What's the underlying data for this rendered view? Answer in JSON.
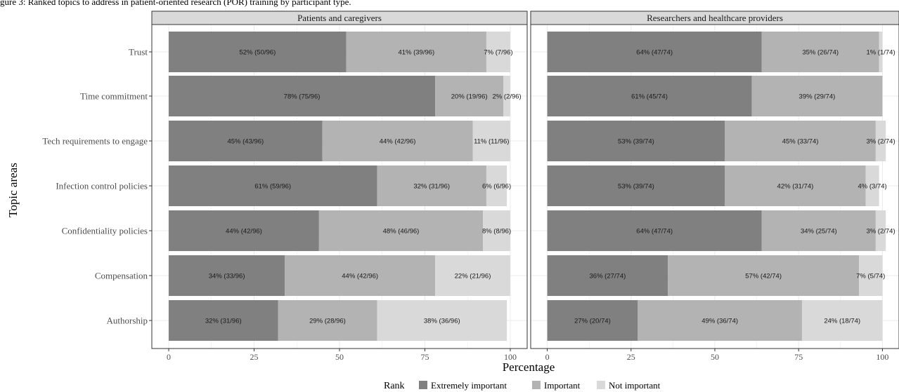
{
  "caption_fragment": "gure 3: Ranked topics to address in patient-oriented research (POR) training by participant type.",
  "colors": {
    "extremely_important": "#808080",
    "important": "#b3b3b3",
    "not_important": "#d9d9d9",
    "panel_bg": "#ffffff",
    "strip_bg": "#d9d9d9",
    "grid": "#ebebeb"
  },
  "chart_data": {
    "type": "bar",
    "orientation": "horizontal",
    "stacked": true,
    "xlabel": "Percentage",
    "ylabel": "Topic areas",
    "xlim": [
      0,
      100
    ],
    "x_ticks": [
      "0",
      "25",
      "50",
      "75",
      "100"
    ],
    "grid": true,
    "legend": {
      "title": "Rank",
      "position": "bottom",
      "entries": [
        "Extremely important",
        "Important",
        "Not important"
      ]
    },
    "categories": [
      "Trust",
      "Time commitment",
      "Tech requirements to engage",
      "Infection control policies",
      "Confidentiality policies",
      "Compensation",
      "Authorship"
    ],
    "panels": [
      {
        "title": "Patients and caregivers",
        "series": [
          {
            "name": "Extremely important",
            "values": [
              52,
              78,
              45,
              61,
              44,
              34,
              32
            ],
            "labels": [
              "52% (50/96)",
              "78% (75/96)",
              "45% (43/96)",
              "61% (59/96)",
              "44% (42/96)",
              "34% (33/96)",
              "32% (31/96)"
            ]
          },
          {
            "name": "Important",
            "values": [
              41,
              20,
              44,
              32,
              48,
              44,
              29
            ],
            "labels": [
              "41% (39/96)",
              "20% (19/96)",
              "44% (42/96)",
              "32% (31/96)",
              "48% (46/96)",
              "44% (42/96)",
              "29% (28/96)"
            ]
          },
          {
            "name": "Not important",
            "values": [
              7,
              2,
              11,
              6,
              8,
              22,
              38
            ],
            "labels": [
              "7% (7/96)",
              "2% (2/96)",
              "11% (11/96)",
              "6% (6/96)",
              "8% (8/96)",
              "22% (21/96)",
              "38% (36/96)"
            ]
          }
        ]
      },
      {
        "title": "Researchers and healthcare providers",
        "series": [
          {
            "name": "Extremely important",
            "values": [
              64,
              61,
              53,
              53,
              64,
              36,
              27
            ],
            "labels": [
              "64% (47/74)",
              "61% (45/74)",
              "53% (39/74)",
              "53% (39/74)",
              "64% (47/74)",
              "36% (27/74)",
              "27% (20/74)"
            ]
          },
          {
            "name": "Important",
            "values": [
              35,
              39,
              45,
              42,
              34,
              57,
              49
            ],
            "labels": [
              "35% (26/74)",
              "39% (29/74)",
              "45% (33/74)",
              "42% (31/74)",
              "34% (25/74)",
              "57% (42/74)",
              "49% (36/74)"
            ]
          },
          {
            "name": "Not important",
            "values": [
              1,
              0,
              3,
              4,
              3,
              7,
              24
            ],
            "labels": [
              "1% (1/74)",
              "",
              "3% (2/74)",
              "4% (3/74)",
              "3% (2/74)",
              "7% (5/74)",
              "24% (18/74)"
            ]
          }
        ]
      }
    ]
  }
}
